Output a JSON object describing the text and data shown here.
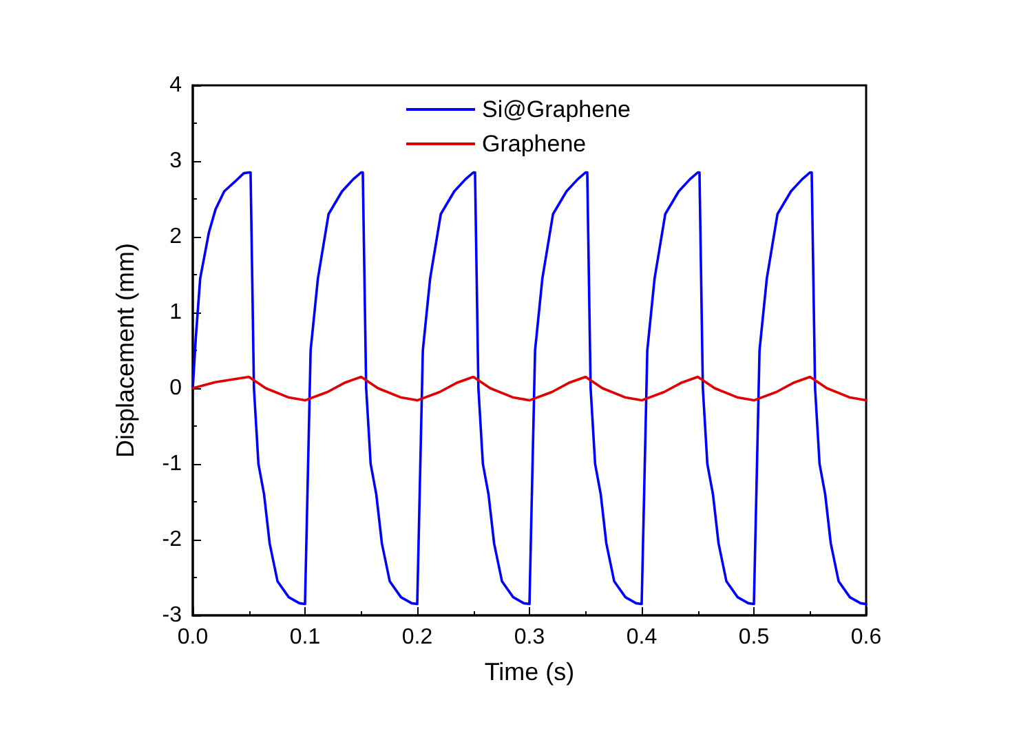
{
  "chart_data": {
    "type": "line",
    "xlabel": "Time (s)",
    "ylabel": "Displacement (mm)",
    "xlim": [
      0,
      0.6
    ],
    "xticks": [
      {
        "value": 0,
        "label": "0.0"
      },
      0.1,
      0.2,
      0.3,
      0.4,
      0.5,
      0.6
    ],
    "ylim": [
      -3,
      4
    ],
    "yticks": [
      -3,
      -2,
      -1,
      0,
      1,
      2,
      3,
      4
    ],
    "grid": false,
    "legend": "top",
    "marker": "none",
    "line_style": "solid",
    "series": [
      {
        "name": "Si@Graphene",
        "color": "#0000ff",
        "x": [
          0,
          0.0027,
          0.0066,
          0.0144,
          0.0202,
          0.028,
          0.0377,
          0.0455,
          0.05,
          0.0515,
          0.0545,
          0.0585,
          0.0635,
          0.0685,
          0.0755,
          0.0855,
          0.095,
          0.1,
          0.105,
          0.1115,
          0.121,
          0.133,
          0.143,
          0.15,
          0.1515,
          0.1545,
          0.1585,
          0.1635,
          0.1685,
          0.1755,
          0.1855,
          0.195,
          0.2,
          0.205,
          0.2115,
          0.221,
          0.233,
          0.243,
          0.25,
          0.2515,
          0.2545,
          0.2585,
          0.2635,
          0.2685,
          0.2755,
          0.2855,
          0.295,
          0.3,
          0.305,
          0.3115,
          0.321,
          0.333,
          0.343,
          0.35,
          0.3515,
          0.3545,
          0.3585,
          0.3635,
          0.3685,
          0.3755,
          0.3855,
          0.395,
          0.4,
          0.405,
          0.4115,
          0.421,
          0.433,
          0.443,
          0.45,
          0.4515,
          0.4545,
          0.4585,
          0.4635,
          0.4685,
          0.4755,
          0.4855,
          0.495,
          0.5,
          0.505,
          0.5115,
          0.521,
          0.533,
          0.543,
          0.55,
          0.5515,
          0.5545,
          0.5585,
          0.5635,
          0.5685,
          0.5755,
          0.5855,
          0.595,
          0.6
        ],
        "values": [
          0,
          0.67,
          1.45,
          2.06,
          2.36,
          2.6,
          2.73,
          2.84,
          2.85,
          2.85,
          0,
          -1,
          -1.4,
          -2.05,
          -2.55,
          -2.76,
          -2.84,
          -2.85,
          0.5,
          1.45,
          2.3,
          2.6,
          2.76,
          2.85,
          2.85,
          0,
          -1,
          -1.4,
          -2.05,
          -2.55,
          -2.76,
          -2.84,
          -2.85,
          0.5,
          1.45,
          2.3,
          2.6,
          2.76,
          2.85,
          2.85,
          0,
          -1,
          -1.4,
          -2.05,
          -2.55,
          -2.76,
          -2.84,
          -2.85,
          0.5,
          1.45,
          2.3,
          2.6,
          2.76,
          2.85,
          2.85,
          0,
          -1,
          -1.4,
          -2.05,
          -2.55,
          -2.76,
          -2.84,
          -2.85,
          0.5,
          1.45,
          2.3,
          2.6,
          2.76,
          2.85,
          2.85,
          0,
          -1,
          -1.4,
          -2.05,
          -2.55,
          -2.76,
          -2.84,
          -2.85,
          0.5,
          1.45,
          2.3,
          2.6,
          2.76,
          2.85,
          2.85,
          0,
          -1,
          -1.4,
          -2.05,
          -2.55,
          -2.76,
          -2.84,
          -2.85
        ]
      },
      {
        "name": "Graphene",
        "color": "#e00000",
        "x": [
          0,
          0.02,
          0.05,
          0.065,
          0.085,
          0.1,
          0.12,
          0.135,
          0.15,
          0.165,
          0.185,
          0.2,
          0.22,
          0.235,
          0.25,
          0.265,
          0.285,
          0.3,
          0.32,
          0.335,
          0.35,
          0.365,
          0.385,
          0.4,
          0.42,
          0.435,
          0.45,
          0.465,
          0.485,
          0.5,
          0.52,
          0.535,
          0.55,
          0.565,
          0.585,
          0.6
        ],
        "values": [
          0,
          0.08,
          0.15,
          0,
          -0.12,
          -0.16,
          -0.05,
          0.07,
          0.15,
          0,
          -0.12,
          -0.16,
          -0.05,
          0.07,
          0.15,
          0,
          -0.12,
          -0.16,
          -0.05,
          0.07,
          0.15,
          0,
          -0.12,
          -0.16,
          -0.05,
          0.07,
          0.15,
          0,
          -0.12,
          -0.16,
          -0.05,
          0.07,
          0.15,
          0,
          -0.12,
          -0.16
        ]
      }
    ]
  }
}
